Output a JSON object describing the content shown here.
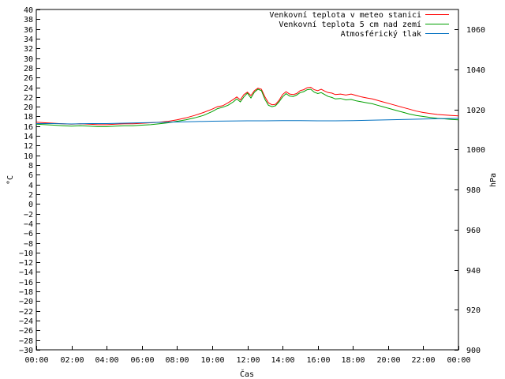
{
  "chart_data": {
    "type": "line",
    "title": "",
    "xlabel": "Čas",
    "ylabel": "°C",
    "y2label": "hPa",
    "x_ticks": [
      "00:00",
      "02:00",
      "04:00",
      "06:00",
      "08:00",
      "10:00",
      "12:00",
      "14:00",
      "16:00",
      "18:00",
      "20:00",
      "22:00",
      "00:00"
    ],
    "xlim_hours": [
      0,
      24
    ],
    "ylim": [
      -30,
      40
    ],
    "y_ticks": [
      -30,
      -28,
      -26,
      -24,
      -22,
      -20,
      -18,
      -16,
      -14,
      -12,
      -10,
      -8,
      -6,
      -4,
      -2,
      0,
      2,
      4,
      6,
      8,
      10,
      12,
      14,
      16,
      18,
      20,
      22,
      24,
      26,
      28,
      30,
      32,
      34,
      36,
      38,
      40
    ],
    "y2lim": [
      900,
      1070
    ],
    "y2_ticks": [
      900,
      920,
      940,
      960,
      980,
      1000,
      1020,
      1040,
      1060
    ],
    "grid": false,
    "legend_position": "top-right",
    "series": [
      {
        "name": "Venkovní teplota v meteo stanici",
        "color": "#ff0000",
        "axis": "left",
        "x": [
          0,
          0.5,
          1,
          1.5,
          2,
          2.5,
          3,
          3.5,
          4,
          4.5,
          5,
          5.5,
          6,
          6.5,
          7,
          7.5,
          8,
          8.5,
          9,
          9.5,
          10,
          10.3,
          10.6,
          10.9,
          11.2,
          11.4,
          11.6,
          11.8,
          12,
          12.2,
          12.4,
          12.6,
          12.8,
          13,
          13.2,
          13.4,
          13.6,
          13.8,
          14,
          14.2,
          14.4,
          14.6,
          14.8,
          15,
          15.2,
          15.4,
          15.6,
          15.8,
          16,
          16.2,
          16.4,
          16.6,
          16.8,
          17,
          17.3,
          17.6,
          17.9,
          18.2,
          18.5,
          18.8,
          19.1,
          19.4,
          19.7,
          20,
          20.4,
          20.8,
          21.2,
          21.6,
          22,
          22.4,
          22.8,
          23.2,
          23.6,
          24
        ],
        "values": [
          16.8,
          16.7,
          16.6,
          16.5,
          16.4,
          16.5,
          16.4,
          16.3,
          16.3,
          16.4,
          16.5,
          16.5,
          16.6,
          16.7,
          16.8,
          17.0,
          17.3,
          17.7,
          18.2,
          18.8,
          19.5,
          20.0,
          20.2,
          20.8,
          21.5,
          22.0,
          21.4,
          22.5,
          23.0,
          22.3,
          23.3,
          23.8,
          23.6,
          22.0,
          20.8,
          20.4,
          20.5,
          21.3,
          22.5,
          23.1,
          22.6,
          22.5,
          22.7,
          23.3,
          23.5,
          23.9,
          24.0,
          23.5,
          23.3,
          23.6,
          23.2,
          22.9,
          22.8,
          22.5,
          22.6,
          22.4,
          22.6,
          22.3,
          22.0,
          21.8,
          21.6,
          21.3,
          21.0,
          20.7,
          20.3,
          19.9,
          19.5,
          19.1,
          18.8,
          18.6,
          18.4,
          18.3,
          18.2,
          18.1
        ]
      },
      {
        "name": "Venkovní teplota 5 cm nad zemí",
        "color": "#00a000",
        "axis": "left",
        "x": [
          0,
          0.5,
          1,
          1.5,
          2,
          2.5,
          3,
          3.5,
          4,
          4.5,
          5,
          5.5,
          6,
          6.5,
          7,
          7.5,
          8,
          8.5,
          9,
          9.5,
          10,
          10.3,
          10.6,
          10.9,
          11.2,
          11.4,
          11.6,
          11.8,
          12,
          12.2,
          12.4,
          12.6,
          12.8,
          13,
          13.2,
          13.4,
          13.6,
          13.8,
          14,
          14.2,
          14.4,
          14.6,
          14.8,
          15,
          15.2,
          15.4,
          15.6,
          15.8,
          16,
          16.2,
          16.4,
          16.6,
          16.8,
          17,
          17.3,
          17.6,
          17.9,
          18.2,
          18.5,
          18.8,
          19.1,
          19.4,
          19.7,
          20,
          20.4,
          20.8,
          21.2,
          21.6,
          22,
          22.4,
          22.8,
          23.2,
          23.6,
          24
        ],
        "values": [
          16.4,
          16.3,
          16.2,
          16.1,
          16.0,
          16.1,
          16.0,
          15.9,
          15.9,
          16.0,
          16.1,
          16.1,
          16.2,
          16.3,
          16.5,
          16.7,
          17.0,
          17.3,
          17.7,
          18.2,
          19.0,
          19.6,
          19.9,
          20.3,
          21.0,
          21.6,
          21.0,
          22.0,
          22.8,
          21.8,
          23.0,
          23.6,
          23.3,
          21.5,
          20.3,
          20.0,
          20.2,
          21.0,
          22.0,
          22.7,
          22.2,
          22.1,
          22.4,
          22.9,
          23.1,
          23.5,
          23.6,
          23.0,
          22.7,
          22.9,
          22.5,
          22.1,
          21.9,
          21.6,
          21.7,
          21.4,
          21.5,
          21.2,
          21.0,
          20.8,
          20.6,
          20.3,
          20.0,
          19.7,
          19.3,
          18.9,
          18.5,
          18.2,
          18.0,
          17.8,
          17.6,
          17.5,
          17.4,
          17.3
        ]
      },
      {
        "name": "Atmosférický tlak",
        "color": "#0070c0",
        "axis": "right",
        "x": [
          0,
          1,
          2,
          3,
          4,
          5,
          6,
          7,
          8,
          9,
          10,
          11,
          12,
          13,
          14,
          15,
          16,
          17,
          18,
          19,
          20,
          21,
          22,
          23,
          24
        ],
        "values": [
          1013.0,
          1013.0,
          1012.8,
          1013.0,
          1013.0,
          1013.2,
          1013.4,
          1013.6,
          1013.8,
          1014.0,
          1014.2,
          1014.3,
          1014.4,
          1014.4,
          1014.5,
          1014.5,
          1014.4,
          1014.4,
          1014.5,
          1014.7,
          1014.9,
          1015.1,
          1015.3,
          1015.5,
          1015.6
        ]
      }
    ]
  }
}
